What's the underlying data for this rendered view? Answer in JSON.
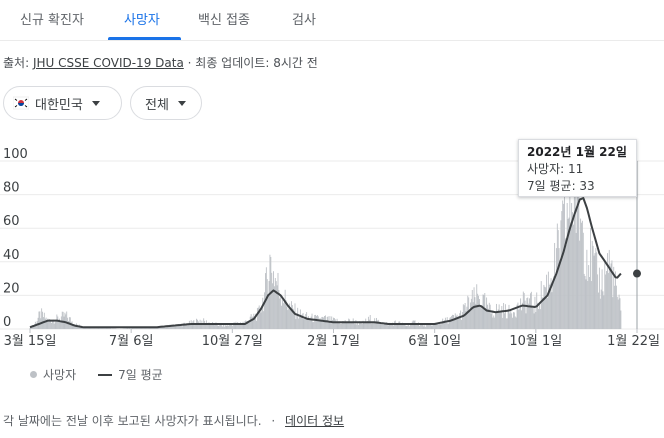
{
  "tabs": [
    {
      "label": "신규 확진자"
    },
    {
      "label": "사망자"
    },
    {
      "label": "백신 접종"
    },
    {
      "label": "검사"
    }
  ],
  "source": {
    "prefix": "출처:",
    "link": "JHU CSSE COVID-19 Data",
    "separator": "·",
    "updated": "최종 업데이트: 8시간 전"
  },
  "filters": {
    "region": "대한민국",
    "range": "전체"
  },
  "tooltip": {
    "date": "2022년 1월 22일",
    "deaths": "사망자: 11",
    "avg": "7일 평균: 33"
  },
  "legend": {
    "bars": "사망자",
    "line": "7일 평균"
  },
  "footer": {
    "note": "각 날짜에는 전날 이후 보고된 사망자가 표시됩니다.",
    "separator": "·",
    "link": "데이터 정보"
  },
  "colors": {
    "accent": "#1a73e8",
    "bar": "#bdc1c6",
    "line": "#3c4043"
  },
  "chart_data": {
    "type": "bar",
    "title": "",
    "xlabel": "",
    "ylabel": "",
    "ylim": [
      0,
      100
    ],
    "yticks": [
      0,
      20,
      40,
      60,
      80,
      100
    ],
    "x_tick_labels": [
      "3월 15일",
      "7월 6일",
      "10월 27일",
      "2월 17일",
      "6월 10일",
      "10월 1일",
      "1월 22일"
    ],
    "x_tick_positions": [
      0,
      113,
      226,
      339,
      452,
      565,
      678
    ],
    "grid": true,
    "series": [
      {
        "name": "사망자",
        "type": "bar",
        "values_by_day_keypoints": [
          [
            0,
            1
          ],
          [
            5,
            3
          ],
          [
            12,
            9
          ],
          [
            20,
            5
          ],
          [
            30,
            6
          ],
          [
            40,
            8
          ],
          [
            50,
            3
          ],
          [
            60,
            1
          ],
          [
            80,
            1
          ],
          [
            100,
            0
          ],
          [
            120,
            1
          ],
          [
            140,
            1
          ],
          [
            160,
            2
          ],
          [
            175,
            3
          ],
          [
            190,
            5
          ],
          [
            205,
            3
          ],
          [
            215,
            2
          ],
          [
            220,
            2
          ],
          [
            226,
            3
          ],
          [
            240,
            4
          ],
          [
            255,
            9
          ],
          [
            262,
            20
          ],
          [
            268,
            40
          ],
          [
            274,
            30
          ],
          [
            280,
            22
          ],
          [
            290,
            13
          ],
          [
            300,
            9
          ],
          [
            310,
            7
          ],
          [
            320,
            6
          ],
          [
            330,
            6
          ],
          [
            339,
            5
          ],
          [
            350,
            4
          ],
          [
            360,
            5
          ],
          [
            370,
            3
          ],
          [
            380,
            6
          ],
          [
            390,
            4
          ],
          [
            400,
            3
          ],
          [
            410,
            4
          ],
          [
            420,
            2
          ],
          [
            430,
            4
          ],
          [
            440,
            2
          ],
          [
            452,
            3
          ],
          [
            465,
            5
          ],
          [
            480,
            8
          ],
          [
            490,
            15
          ],
          [
            500,
            19
          ],
          [
            508,
            15
          ],
          [
            515,
            10
          ],
          [
            525,
            12
          ],
          [
            535,
            10
          ],
          [
            545,
            13
          ],
          [
            555,
            17
          ],
          [
            565,
            14
          ],
          [
            575,
            25
          ],
          [
            585,
            35
          ],
          [
            592,
            50
          ],
          [
            600,
            65
          ],
          [
            606,
            80
          ],
          [
            612,
            75
          ],
          [
            618,
            60
          ],
          [
            622,
            48
          ],
          [
            628,
            40
          ],
          [
            634,
            30
          ],
          [
            640,
            28
          ],
          [
            645,
            40
          ],
          [
            650,
            35
          ],
          [
            655,
            22
          ],
          [
            660,
            11
          ]
        ]
      },
      {
        "name": "7일 평균",
        "type": "line",
        "points": [
          [
            0,
            1
          ],
          [
            10,
            3
          ],
          [
            20,
            5
          ],
          [
            30,
            5
          ],
          [
            40,
            4
          ],
          [
            50,
            2
          ],
          [
            60,
            1
          ],
          [
            80,
            1
          ],
          [
            100,
            1
          ],
          [
            120,
            1
          ],
          [
            140,
            1
          ],
          [
            160,
            2
          ],
          [
            180,
            3
          ],
          [
            200,
            3
          ],
          [
            226,
            3
          ],
          [
            240,
            3
          ],
          [
            250,
            6
          ],
          [
            258,
            12
          ],
          [
            266,
            20
          ],
          [
            272,
            23
          ],
          [
            280,
            20
          ],
          [
            288,
            14
          ],
          [
            296,
            9
          ],
          [
            310,
            6
          ],
          [
            325,
            5
          ],
          [
            339,
            4
          ],
          [
            355,
            4
          ],
          [
            370,
            4
          ],
          [
            385,
            4
          ],
          [
            400,
            3
          ],
          [
            415,
            3
          ],
          [
            430,
            3
          ],
          [
            452,
            3
          ],
          [
            470,
            5
          ],
          [
            485,
            8
          ],
          [
            495,
            13
          ],
          [
            503,
            14
          ],
          [
            510,
            11
          ],
          [
            520,
            10
          ],
          [
            535,
            11
          ],
          [
            550,
            14
          ],
          [
            565,
            13
          ],
          [
            578,
            20
          ],
          [
            588,
            33
          ],
          [
            596,
            46
          ],
          [
            602,
            58
          ],
          [
            608,
            68
          ],
          [
            614,
            77
          ],
          [
            618,
            78
          ],
          [
            622,
            72
          ],
          [
            628,
            60
          ],
          [
            636,
            45
          ],
          [
            645,
            38
          ],
          [
            655,
            30
          ],
          [
            660,
            33
          ]
        ]
      }
    ],
    "highlight": {
      "date": "2022년 1월 22일",
      "deaths": 11,
      "avg": 33
    }
  }
}
